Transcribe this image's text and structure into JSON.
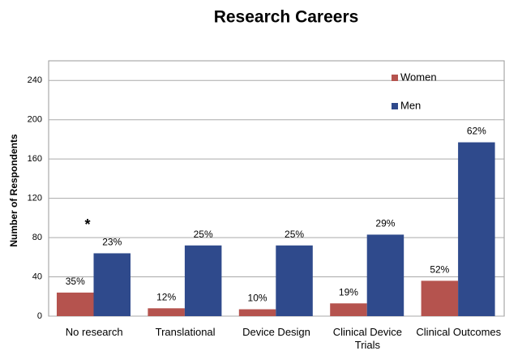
{
  "chart_data": {
    "type": "bar",
    "title": "Research Careers",
    "y_label": "Number of Respondents",
    "categories": [
      "No research",
      "Translational",
      "Device Design",
      "Clinical Device Trials",
      "Clinical Outcomes"
    ],
    "series": [
      {
        "name": "Women",
        "color": "#b5534e",
        "values": [
          24,
          8,
          7,
          13,
          36
        ],
        "labels": [
          "35%",
          "12%",
          "10%",
          "19%",
          "52%"
        ]
      },
      {
        "name": "Men",
        "color": "#2f4a8c",
        "values": [
          64,
          72,
          72,
          83,
          177
        ],
        "labels": [
          "23%",
          "25%",
          "25%",
          "29%",
          "62%"
        ]
      }
    ],
    "annotations": [
      "*"
    ],
    "ylim": [
      0,
      260
    ],
    "yticks": [
      0,
      40,
      80,
      120,
      160,
      200,
      240
    ],
    "grid": true,
    "legend": "upper right"
  }
}
